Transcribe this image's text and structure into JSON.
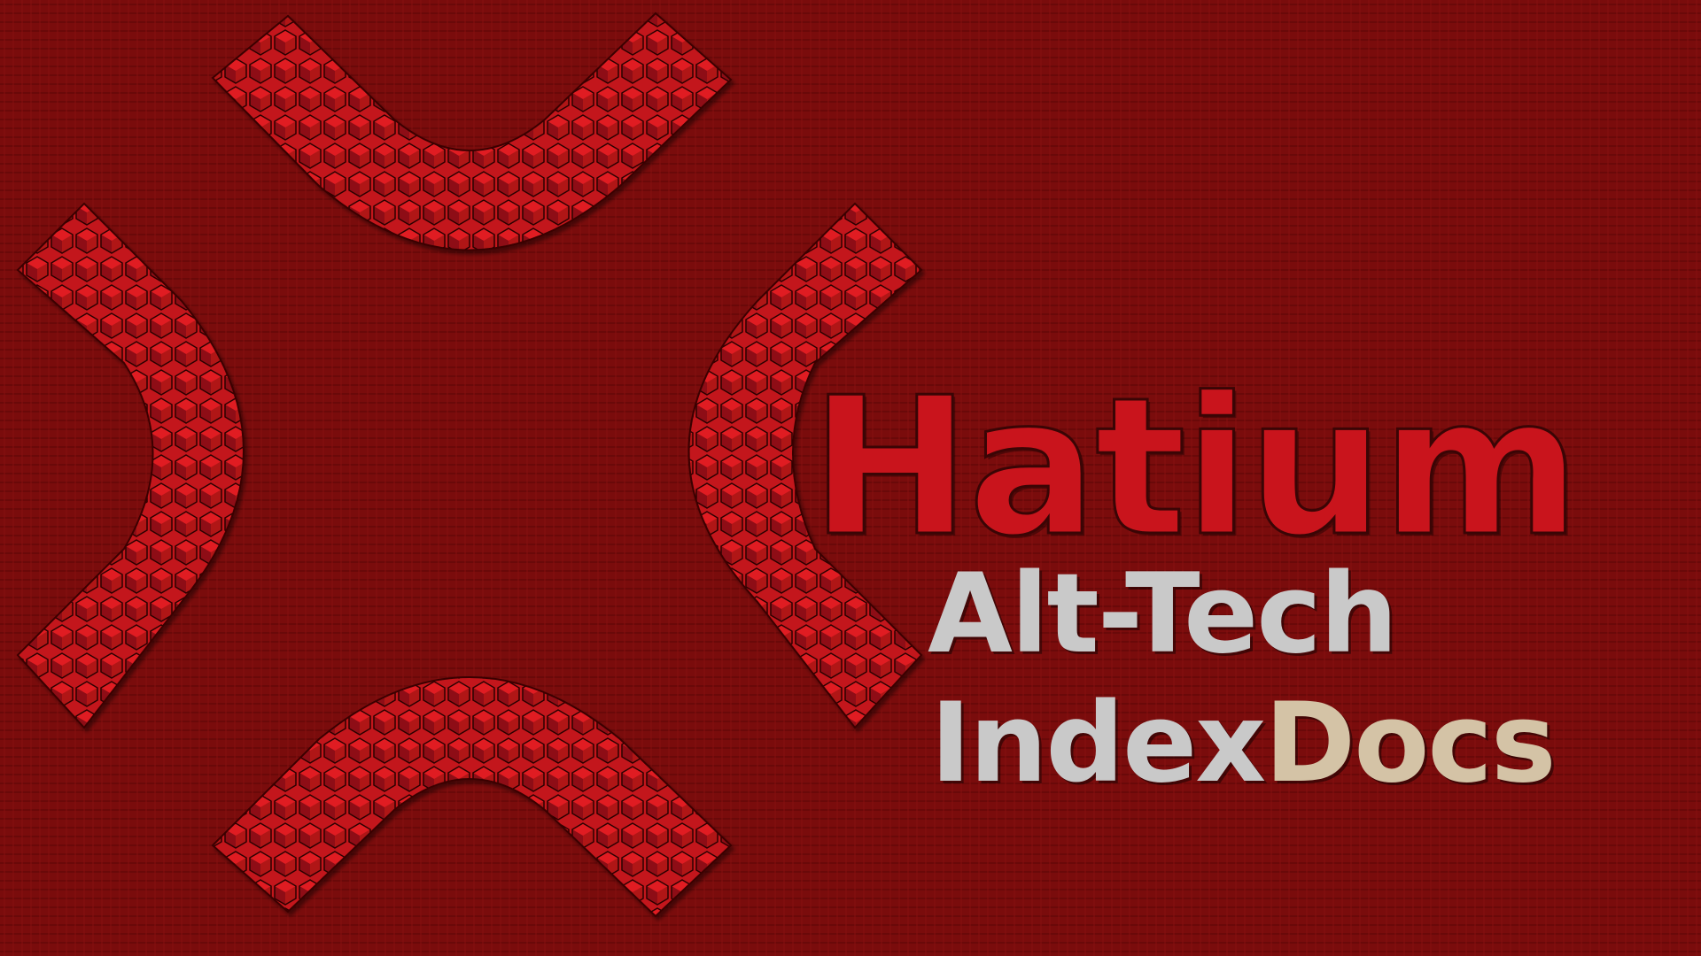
{
  "logo": {
    "wordmark": "Hatium",
    "line1": "Alt-Tech",
    "line2_part1": "Index",
    "line2_part2": "Docs"
  },
  "colors": {
    "background": "#7a0c0c",
    "emblem_red": "#c9141c",
    "text_silver": "#c9c9c9",
    "text_tan": "#d4c3a6"
  },
  "icons": {
    "emblem": "four-curved-brackets-emblem-icon"
  }
}
